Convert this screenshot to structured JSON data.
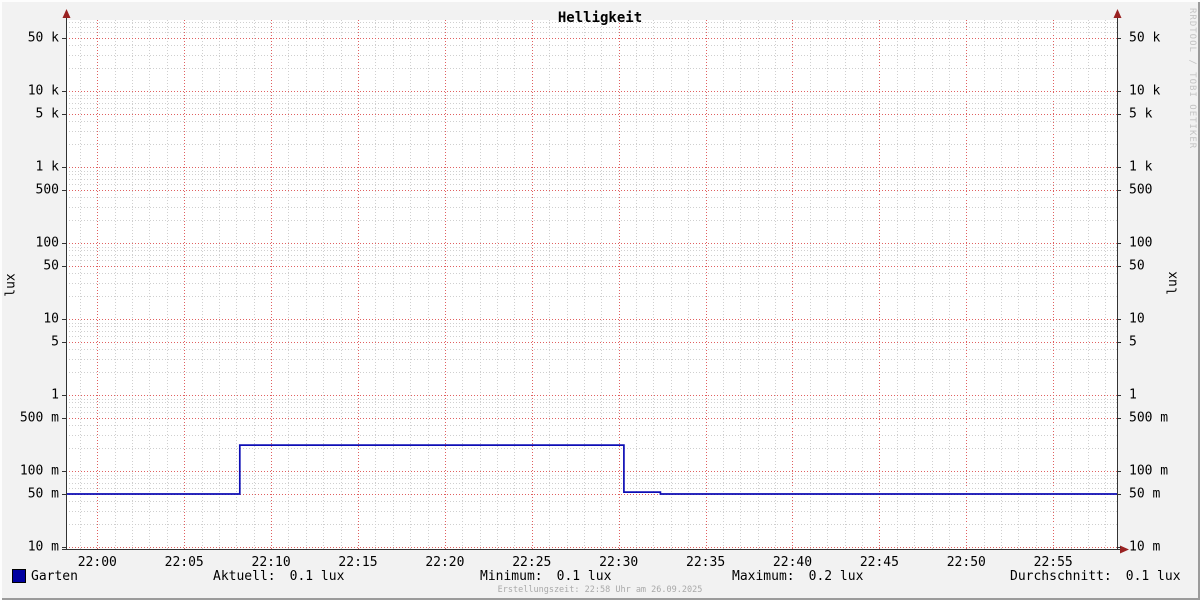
{
  "title": "Helligkeit",
  "watermark": "RRDTOOL / TOBI OETIKER",
  "footer": "Erstellungszeit: 22:58 Uhr am 26.09.2025",
  "colors": {
    "background": "#f2f2f2",
    "canvas": "#ffffff",
    "major_grid": "#e06060",
    "minor_grid": "#cfcfcf",
    "axis": "#333333",
    "arrow": "#992222",
    "series": "#0d0db5",
    "legend_swatch": "#0000a0",
    "watermark_text": "#c4c4c4",
    "footer_text": "#a9a9a9"
  },
  "y_axis": {
    "unit_left": "lux",
    "unit_right": "lux",
    "scale": "log",
    "ticks": [
      {
        "value": 50000,
        "label": "50 k"
      },
      {
        "value": 10000,
        "label": "10 k"
      },
      {
        "value": 5000,
        "label": "5 k"
      },
      {
        "value": 1000,
        "label": "1 k"
      },
      {
        "value": 500,
        "label": "500"
      },
      {
        "value": 100,
        "label": "100"
      },
      {
        "value": 50,
        "label": "50"
      },
      {
        "value": 10,
        "label": "10"
      },
      {
        "value": 5,
        "label": "5"
      },
      {
        "value": 1,
        "label": "1"
      },
      {
        "value": 0.5,
        "label": "500 m"
      },
      {
        "value": 0.1,
        "label": "100 m"
      },
      {
        "value": 0.05,
        "label": "50 m"
      },
      {
        "value": 0.01,
        "label": "10 m"
      }
    ]
  },
  "x_axis": {
    "labels": [
      {
        "min": 0,
        "label": "22:00"
      },
      {
        "min": 5,
        "label": "22:05"
      },
      {
        "min": 10,
        "label": "22:10"
      },
      {
        "min": 15,
        "label": "22:15"
      },
      {
        "min": 20,
        "label": "22:20"
      },
      {
        "min": 25,
        "label": "22:25"
      },
      {
        "min": 30,
        "label": "22:30"
      },
      {
        "min": 35,
        "label": "22:35"
      },
      {
        "min": 40,
        "label": "22:40"
      },
      {
        "min": 45,
        "label": "22:45"
      },
      {
        "min": 50,
        "label": "22:50"
      },
      {
        "min": 55,
        "label": "22:55"
      }
    ]
  },
  "legend": {
    "series_label": "Garten",
    "stats": [
      {
        "name": "Aktuell:",
        "value": "0.1 lux"
      },
      {
        "name": "Minimum:",
        "value": "0.1 lux"
      },
      {
        "name": "Maximum:",
        "value": "0.2 lux"
      },
      {
        "name": "Durchschnitt:",
        "value": "0.1 lux"
      }
    ]
  },
  "chart_data": {
    "type": "line",
    "line_style": "step",
    "title": "Helligkeit",
    "ylabel": "lux",
    "y_scale": "log",
    "ylim": [
      0.0095,
      86000
    ],
    "x_start": "21:58",
    "x_end": "22:59",
    "minor_x_interval_min": 1,
    "major_x_interval_min": 5,
    "grid": true,
    "legend_position": "bottom",
    "series": [
      {
        "name": "Garten",
        "color": "#0d0db5",
        "points": [
          {
            "t": "21:58",
            "min": -1.8,
            "value": 0.05
          },
          {
            "t": "22:08",
            "min": 8.2,
            "value": 0.22
          },
          {
            "t": "22:30",
            "min": 30.3,
            "value": 0.053
          },
          {
            "t": "22:32",
            "min": 32.4,
            "value": 0.05
          },
          {
            "t": "22:59",
            "min": 58.65,
            "value": 0.05
          }
        ]
      }
    ]
  }
}
